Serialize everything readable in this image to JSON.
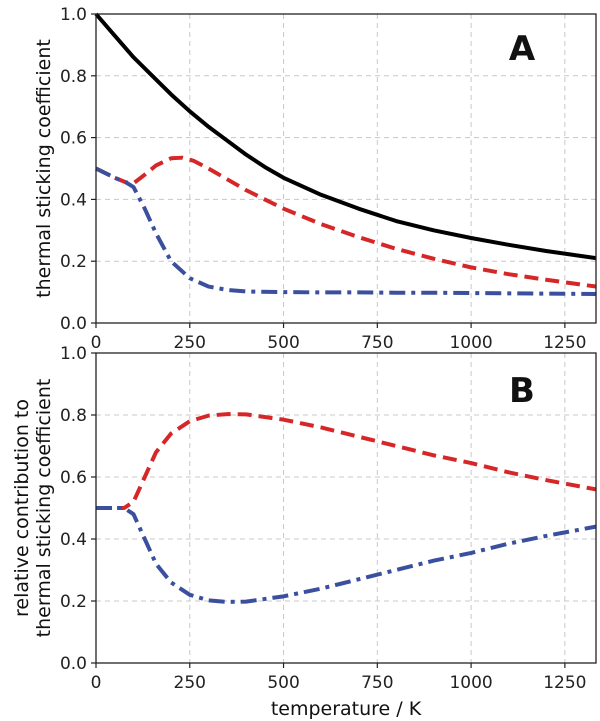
{
  "chart_data": [
    {
      "type": "line",
      "panel_label": "A",
      "ylabel": "thermal sticking coefficient",
      "xlim": [
        0,
        1333
      ],
      "ylim": [
        0,
        1.0
      ],
      "xticks": [
        0,
        250,
        500,
        750,
        1000,
        1250
      ],
      "yticks": [
        0.0,
        0.2,
        0.4,
        0.6,
        0.8,
        1.0
      ],
      "grid": true,
      "series": [
        {
          "style": "solid",
          "color": "#000000",
          "x": [
            0,
            50,
            100,
            150,
            200,
            250,
            300,
            350,
            400,
            450,
            500,
            600,
            700,
            800,
            900,
            1000,
            1100,
            1200,
            1333
          ],
          "y": [
            1.0,
            0.93,
            0.86,
            0.8,
            0.74,
            0.685,
            0.635,
            0.59,
            0.545,
            0.505,
            0.47,
            0.415,
            0.37,
            0.33,
            0.3,
            0.275,
            0.253,
            0.233,
            0.21
          ]
        },
        {
          "style": "dashed",
          "color": "#d62728",
          "x": [
            0,
            50,
            80,
            100,
            130,
            160,
            200,
            230,
            260,
            300,
            350,
            400,
            450,
            500,
            600,
            700,
            800,
            900,
            1000,
            1100,
            1200,
            1333
          ],
          "y": [
            0.5,
            0.47,
            0.455,
            0.452,
            0.48,
            0.51,
            0.533,
            0.535,
            0.525,
            0.5,
            0.465,
            0.43,
            0.4,
            0.37,
            0.32,
            0.278,
            0.24,
            0.208,
            0.18,
            0.158,
            0.14,
            0.118
          ]
        },
        {
          "style": "dash-dot",
          "color": "#3a4f9e",
          "x": [
            0,
            50,
            80,
            100,
            130,
            160,
            200,
            250,
            300,
            350,
            400,
            500,
            600,
            700,
            800,
            900,
            1000,
            1100,
            1200,
            1333
          ],
          "y": [
            0.5,
            0.47,
            0.455,
            0.44,
            0.37,
            0.29,
            0.2,
            0.145,
            0.118,
            0.107,
            0.102,
            0.1,
            0.099,
            0.099,
            0.098,
            0.098,
            0.097,
            0.096,
            0.095,
            0.094
          ]
        }
      ]
    },
    {
      "type": "line",
      "panel_label": "B",
      "ylabel": "relative contribution to\nthermal sticking coefficient",
      "xlabel": "temperature / K",
      "xlim": [
        0,
        1333
      ],
      "ylim": [
        0,
        1.0
      ],
      "xticks": [
        0,
        250,
        500,
        750,
        1000,
        1250
      ],
      "yticks": [
        0.0,
        0.2,
        0.4,
        0.6,
        0.8,
        1.0
      ],
      "grid": true,
      "series": [
        {
          "style": "dashed",
          "color": "#d62728",
          "x": [
            0,
            50,
            75,
            100,
            130,
            160,
            200,
            250,
            300,
            350,
            400,
            500,
            600,
            700,
            800,
            900,
            1000,
            1100,
            1200,
            1333
          ],
          "y": [
            0.5,
            0.5,
            0.5,
            0.52,
            0.6,
            0.68,
            0.74,
            0.78,
            0.798,
            0.803,
            0.802,
            0.785,
            0.76,
            0.73,
            0.7,
            0.67,
            0.645,
            0.615,
            0.59,
            0.56
          ]
        },
        {
          "style": "dash-dot",
          "color": "#3a4f9e",
          "x": [
            0,
            50,
            75,
            100,
            130,
            160,
            200,
            250,
            300,
            350,
            400,
            500,
            600,
            700,
            800,
            900,
            1000,
            1100,
            1200,
            1333
          ],
          "y": [
            0.5,
            0.5,
            0.5,
            0.48,
            0.4,
            0.32,
            0.26,
            0.22,
            0.202,
            0.197,
            0.198,
            0.215,
            0.24,
            0.27,
            0.3,
            0.33,
            0.355,
            0.385,
            0.41,
            0.44
          ]
        }
      ]
    }
  ]
}
